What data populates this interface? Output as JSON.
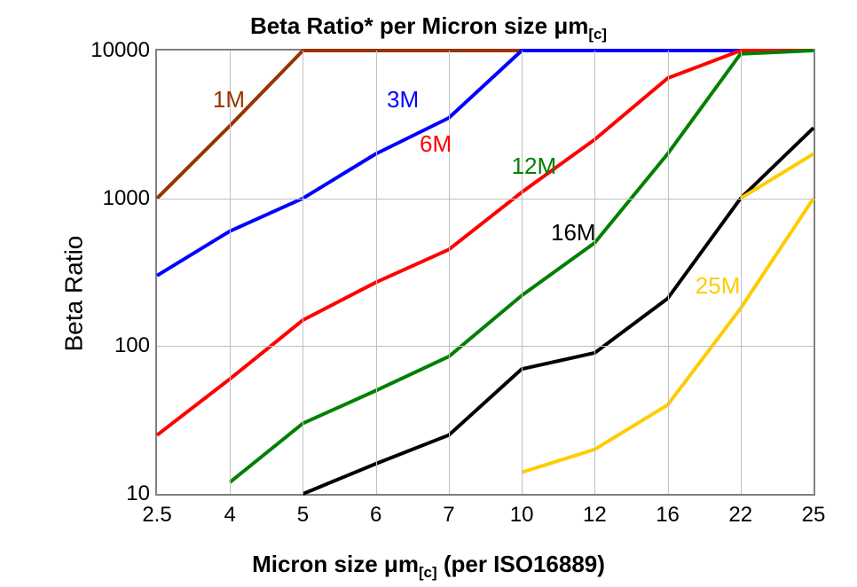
{
  "chart": {
    "type": "line",
    "title_html": "Beta Ratio* per Micron size &mu;m<sub>[c]</sub>",
    "title_fontsize": 26,
    "y_axis_label": "Beta Ratio",
    "x_axis_label_html": "Micron size &mu;m<sub>[c]</sub> (per ISO16889)",
    "axis_label_fontsize": 28,
    "tick_fontsize": 24,
    "background_color": "#ffffff",
    "plot_border_color": "#808080",
    "grid_color": "#c0c0c0",
    "line_width": 4,
    "x_scale": "category",
    "y_scale": "log",
    "y_ticks": [
      10,
      100,
      1000,
      10000
    ],
    "x_ticks": [
      "2.5",
      "4",
      "5",
      "6",
      "7",
      "10",
      "12",
      "16",
      "22",
      "25"
    ],
    "series": [
      {
        "name": "1M",
        "color": "#993300",
        "label_pos_xfrac": 0.085,
        "label_pos_yfrac": 0.08,
        "data": [
          {
            "x": "2.5",
            "y": 1000
          },
          {
            "x": "4",
            "y": 3100
          },
          {
            "x": "5",
            "y": 10000
          },
          {
            "x": "6",
            "y": 10000
          },
          {
            "x": "7",
            "y": 10000
          },
          {
            "x": "10",
            "y": 10000
          },
          {
            "x": "12",
            "y": 10000
          },
          {
            "x": "16",
            "y": 10000
          },
          {
            "x": "22",
            "y": 10000
          },
          {
            "x": "25",
            "y": 10000
          }
        ]
      },
      {
        "name": "3M",
        "color": "#0000ff",
        "label_pos_xfrac": 0.35,
        "label_pos_yfrac": 0.08,
        "data": [
          {
            "x": "2.5",
            "y": 300
          },
          {
            "x": "4",
            "y": 600
          },
          {
            "x": "5",
            "y": 1000
          },
          {
            "x": "6",
            "y": 2000
          },
          {
            "x": "7",
            "y": 3500
          },
          {
            "x": "10",
            "y": 10000
          },
          {
            "x": "12",
            "y": 10000
          },
          {
            "x": "16",
            "y": 10000
          },
          {
            "x": "22",
            "y": 10000
          },
          {
            "x": "25",
            "y": 10000
          }
        ]
      },
      {
        "name": "6M",
        "color": "#ff0000",
        "label_pos_xfrac": 0.4,
        "label_pos_yfrac": 0.18,
        "data": [
          {
            "x": "2.5",
            "y": 25
          },
          {
            "x": "4",
            "y": 60
          },
          {
            "x": "5",
            "y": 150
          },
          {
            "x": "6",
            "y": 270
          },
          {
            "x": "7",
            "y": 450
          },
          {
            "x": "10",
            "y": 1100
          },
          {
            "x": "12",
            "y": 2500
          },
          {
            "x": "16",
            "y": 6500
          },
          {
            "x": "22",
            "y": 10000
          },
          {
            "x": "25",
            "y": 10000
          }
        ]
      },
      {
        "name": "12M",
        "color": "#008000",
        "label_pos_xfrac": 0.54,
        "label_pos_yfrac": 0.23,
        "data": [
          {
            "x": "4",
            "y": 12
          },
          {
            "x": "5",
            "y": 30
          },
          {
            "x": "6",
            "y": 50
          },
          {
            "x": "7",
            "y": 85
          },
          {
            "x": "10",
            "y": 220
          },
          {
            "x": "12",
            "y": 500
          },
          {
            "x": "16",
            "y": 2000
          },
          {
            "x": "22",
            "y": 9500
          },
          {
            "x": "25",
            "y": 10000
          }
        ]
      },
      {
        "name": "16M",
        "color": "#000000",
        "label_pos_xfrac": 0.6,
        "label_pos_yfrac": 0.38,
        "data": [
          {
            "x": "5",
            "y": 10
          },
          {
            "x": "6",
            "y": 16
          },
          {
            "x": "7",
            "y": 25
          },
          {
            "x": "10",
            "y": 70
          },
          {
            "x": "12",
            "y": 90
          },
          {
            "x": "16",
            "y": 210
          },
          {
            "x": "22",
            "y": 1000
          },
          {
            "x": "25",
            "y": 3000
          }
        ]
      },
      {
        "name": "25M",
        "color": "#ffcc00",
        "label_pos_xfrac": 0.82,
        "label_pos_yfrac": 0.5,
        "data": [
          {
            "x": "10",
            "y": 14
          },
          {
            "x": "12",
            "y": 20
          },
          {
            "x": "16",
            "y": 40
          },
          {
            "x": "22",
            "y": 180
          },
          {
            "x": "25",
            "y": 1000
          }
        ]
      },
      {
        "name": "25M-tail",
        "color": "#ffcc00",
        "hide_label": true,
        "data": [
          {
            "x": "22",
            "y": 1000
          },
          {
            "x": "25",
            "y": 2000
          }
        ]
      }
    ]
  }
}
